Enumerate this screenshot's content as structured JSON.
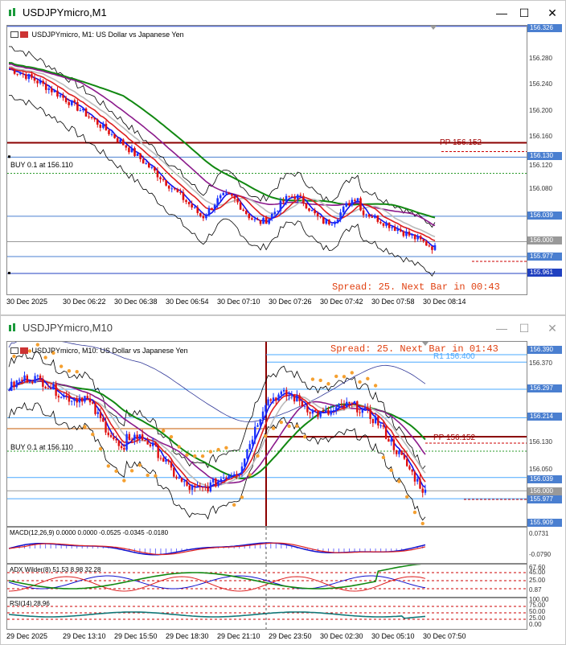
{
  "m1": {
    "title": "USDJPYmicro,M1",
    "header": "USDJPYmicro, M1:  US Dollar vs Japanese Yen",
    "spread": "Spread: 25. Next Bar in 00:43",
    "buy_line": "BUY 0.1 at 156.110",
    "pp": "PP 156.152",
    "price_labels": [
      "156.326",
      "156.280",
      "156.240",
      "156.200",
      "156.160",
      "156.120",
      "156.080",
      "156.039",
      "156.000",
      "155.961"
    ],
    "price_tags": [
      "156.326",
      "156.130",
      "156.039",
      "156.000",
      "155.977",
      "155.961"
    ],
    "time_labels": [
      "30 Dec 2025",
      "30 Dec 06:22",
      "30 Dec 06:38",
      "30 Dec 06:54",
      "30 Dec 07:10",
      "30 Dec 07:26",
      "30 Dec 07:42",
      "30 Dec 07:58",
      "30 Dec 08:14"
    ]
  },
  "m10": {
    "title": "USDJPYmicro,M10",
    "header": "USDJPYmicro, M10:  US Dollar vs Japanese Yen",
    "spread": "Spread: 25. Next Bar in 01:43",
    "r1": "R1 156.400",
    "buy_line": "BUY 0.1 at 156.110",
    "pp": "PP 156.152",
    "price_labels": [
      "156.390",
      "156.370",
      "156.297",
      "156.214",
      "156.130",
      "156.050",
      "156.039",
      "156.000",
      "155.977",
      "155.909"
    ],
    "price_tags": [
      "156.390",
      "156.297",
      "156.214",
      "156.039",
      "156.000",
      "155.977",
      "155.909"
    ],
    "macd": {
      "header": "MACD(12,26,9) 0.0000 0.0000 -0.0525 -0.0345 -0.0180",
      "scale": [
        "0.0731",
        "-0.0790"
      ]
    },
    "adx": {
      "header": "ADX Wilder(8) 51.53 8.98 32.28",
      "scale": [
        "67.60",
        "45.00",
        "25.00",
        "0.87"
      ]
    },
    "rsi": {
      "header": "RSI(14) 28.96",
      "scale": [
        "100.00",
        "75.00",
        "50.00",
        "25.00",
        "0.00"
      ]
    },
    "time_labels": [
      "29 Dec 2025",
      "29 Dec 13:10",
      "29 Dec 15:50",
      "29 Dec 18:30",
      "29 Dec 21:10",
      "29 Dec 23:50",
      "30 Dec 02:30",
      "30 Dec 05:10",
      "30 Dec 07:50"
    ]
  },
  "colors": {
    "bull": "#1a33ff",
    "bear": "#e01010",
    "green_ma": "#118811",
    "purple_ma": "#8b1a8b",
    "red_ma": "#dd2020",
    "blue_ma": "#1010ee",
    "pp_line": "#8b0000",
    "psar": "#f5a030",
    "tag_bg": "#4a7fd0"
  }
}
